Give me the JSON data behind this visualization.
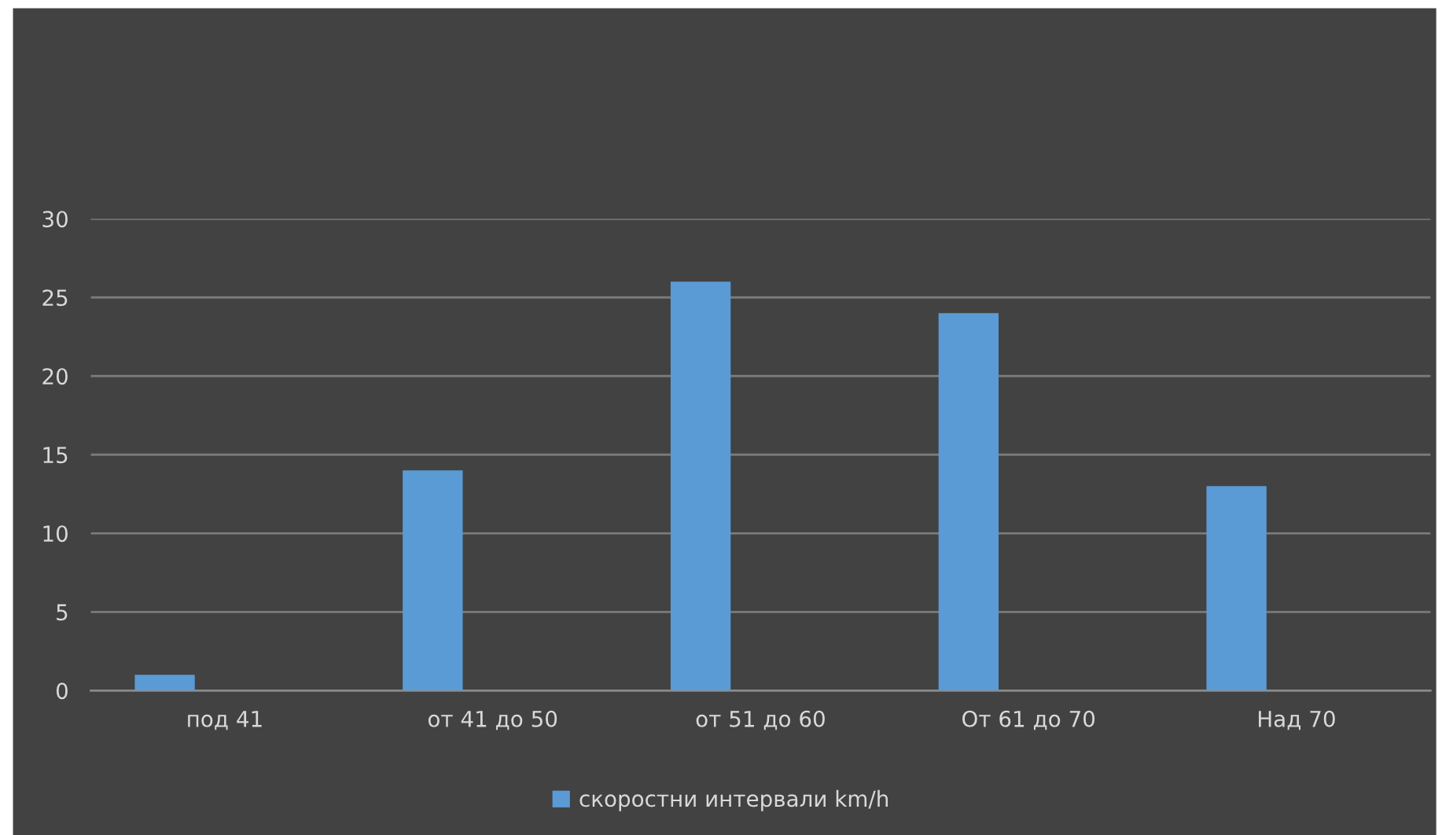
{
  "chart_data": {
    "type": "bar",
    "categories": [
      "под 41",
      "от 41 до 50",
      "от 51 до 60",
      "От 61 до 70",
      "Над 70"
    ],
    "series": [
      {
        "name": "скоростни интервали km/h",
        "color": "#5b9bd5",
        "values": [
          1,
          14,
          26,
          24,
          13
        ]
      }
    ],
    "ylim": [
      0,
      30
    ],
    "yticks": [
      0,
      5,
      10,
      15,
      20,
      25,
      30
    ],
    "grid": "y",
    "legend": "bottom"
  }
}
